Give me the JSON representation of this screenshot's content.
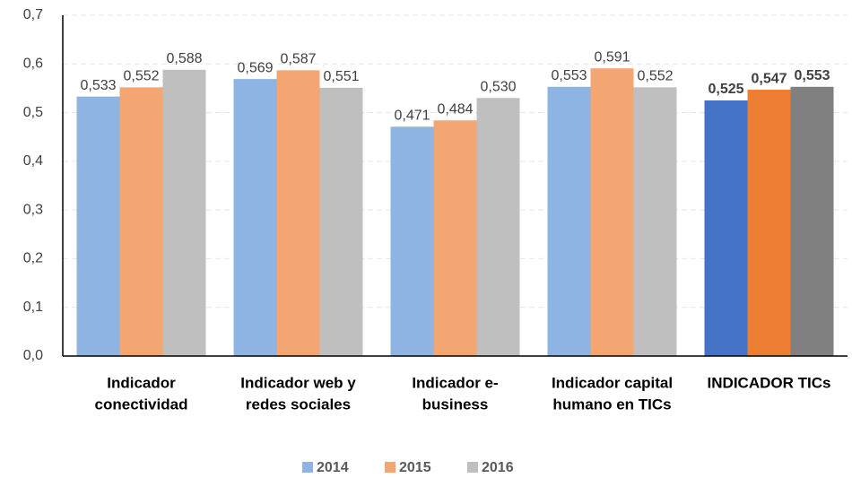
{
  "chart_data": {
    "type": "bar",
    "categories": [
      [
        "Indicador",
        "conectividad"
      ],
      [
        "Indicador web y",
        "redes sociales"
      ],
      [
        "Indicador e-",
        "business"
      ],
      [
        "Indicador capital",
        "humano en TICs"
      ],
      [
        "INDICADOR TICs"
      ]
    ],
    "series": [
      {
        "name": "2014",
        "color": "#8DB4E2",
        "colors": [
          "#8DB4E2",
          "#8DB4E2",
          "#8DB4E2",
          "#8DB4E2",
          "#4472C4"
        ],
        "values": [
          0.533,
          0.569,
          0.471,
          0.553,
          0.525
        ],
        "value_labels": [
          "0,533",
          "0,569",
          "0,471",
          "0,553",
          "0,525"
        ]
      },
      {
        "name": "2015",
        "color": "#F4A672",
        "colors": [
          "#F4A672",
          "#F4A672",
          "#F4A672",
          "#F4A672",
          "#ED7D31"
        ],
        "values": [
          0.552,
          0.587,
          0.484,
          0.591,
          0.547
        ],
        "value_labels": [
          "0,552",
          "0,587",
          "0,484",
          "0,591",
          "0,547"
        ]
      },
      {
        "name": "2016",
        "color": "#BFBFBF",
        "colors": [
          "#BFBFBF",
          "#BFBFBF",
          "#BFBFBF",
          "#BFBFBF",
          "#808080"
        ],
        "values": [
          0.588,
          0.551,
          0.53,
          0.552,
          0.553
        ],
        "value_labels": [
          "0,588",
          "0,551",
          "0,530",
          "0,552",
          "0,553"
        ]
      }
    ],
    "ylim": [
      0,
      0.7
    ],
    "yticks": [
      {
        "value": 0,
        "label": "0,0"
      },
      {
        "value": 0.1,
        "label": "0,1"
      },
      {
        "value": 0.2,
        "label": "0,2"
      },
      {
        "value": 0.3,
        "label": "0,3"
      },
      {
        "value": 0.4,
        "label": "0,4"
      },
      {
        "value": 0.5,
        "label": "0,5"
      },
      {
        "value": 0.6,
        "label": "0,6"
      },
      {
        "value": 0.7,
        "label": "0,7"
      }
    ],
    "grid": true,
    "legend": "bottom"
  }
}
